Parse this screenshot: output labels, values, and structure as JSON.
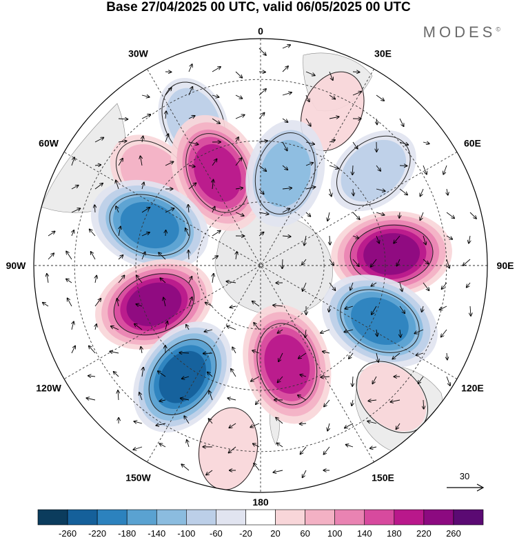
{
  "title": "Base 27/04/2025 00 UTC, valid 06/05/2025 00 UTC",
  "brand": "MODES",
  "brand_mark": "©",
  "longitude_labels": [
    {
      "text": "0",
      "lon": 0
    },
    {
      "text": "30E",
      "lon": 30
    },
    {
      "text": "60E",
      "lon": 60
    },
    {
      "text": "90E",
      "lon": 90
    },
    {
      "text": "120E",
      "lon": 120
    },
    {
      "text": "150E",
      "lon": 150
    },
    {
      "text": "180",
      "lon": 180
    },
    {
      "text": "150W",
      "lon": -150
    },
    {
      "text": "120W",
      "lon": -120
    },
    {
      "text": "90W",
      "lon": -90
    },
    {
      "text": "60W",
      "lon": -60
    },
    {
      "text": "30W",
      "lon": -30
    }
  ],
  "wind_reference": {
    "label": "30"
  },
  "colorbar": {
    "ticks": [
      "-260",
      "-220",
      "-180",
      "-140",
      "-100",
      "-60",
      "-20",
      "20",
      "60",
      "100",
      "140",
      "180",
      "220",
      "260"
    ],
    "colors": [
      "#0b3c5d",
      "#15609a",
      "#2c82be",
      "#5aa2d1",
      "#8bbcdf",
      "#bccfe8",
      "#e1e4f0",
      "#ffffff",
      "#f8d6d9",
      "#f3b1c4",
      "#e983b2",
      "#d74a9e",
      "#b9188b",
      "#8c0a80",
      "#5b0a73"
    ]
  },
  "anomaly_centers": [
    {
      "lon": -25,
      "dist": 0.7,
      "value": -70
    },
    {
      "lon": 25,
      "dist": 0.75,
      "value": 50
    },
    {
      "lon": -50,
      "dist": 0.62,
      "value": 80
    },
    {
      "lon": -25,
      "dist": 0.45,
      "value": 200
    },
    {
      "lon": 15,
      "dist": 0.42,
      "value": -110
    },
    {
      "lon": 50,
      "dist": 0.65,
      "value": -80
    },
    {
      "lon": -70,
      "dist": 0.52,
      "value": -200
    },
    {
      "lon": 85,
      "dist": 0.58,
      "value": 240
    },
    {
      "lon": -110,
      "dist": 0.5,
      "value": 240
    },
    {
      "lon": 115,
      "dist": 0.58,
      "value": -190
    },
    {
      "lon": -145,
      "dist": 0.6,
      "value": -250
    },
    {
      "lon": 165,
      "dist": 0.45,
      "value": 190
    },
    {
      "lon": 135,
      "dist": 0.82,
      "value": 40
    },
    {
      "lon": -170,
      "dist": 0.82,
      "value": 50
    }
  ]
}
